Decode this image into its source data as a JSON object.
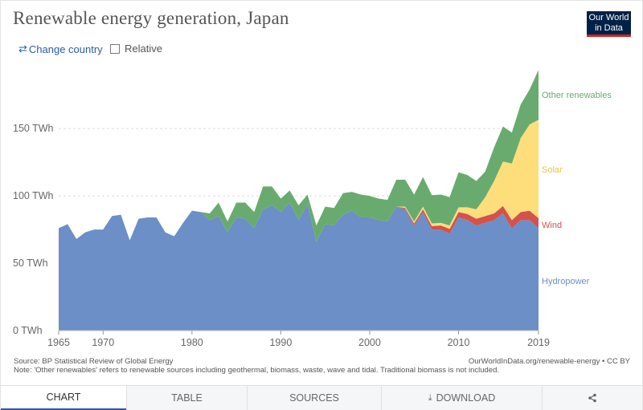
{
  "header": {
    "title": "Renewable energy generation, Japan",
    "logo_line1": "Our World",
    "logo_line2": "in Data"
  },
  "controls": {
    "change_country": "Change country",
    "relative": "Relative"
  },
  "colors": {
    "hydro": "#6b8fc6",
    "wind": "#d5514c",
    "solar": "#fdde7a",
    "other": "#69ab6f",
    "grid": "#dddddd",
    "axis_text": "#666666"
  },
  "chart_data": {
    "type": "area",
    "stacked": true,
    "title": "Renewable energy generation, Japan",
    "x": [
      1965,
      1966,
      1967,
      1968,
      1969,
      1970,
      1971,
      1972,
      1973,
      1974,
      1975,
      1976,
      1977,
      1978,
      1979,
      1980,
      1981,
      1982,
      1983,
      1984,
      1985,
      1986,
      1987,
      1988,
      1989,
      1990,
      1991,
      1992,
      1993,
      1994,
      1995,
      1996,
      1997,
      1998,
      1999,
      2000,
      2001,
      2002,
      2003,
      2004,
      2005,
      2006,
      2007,
      2008,
      2009,
      2010,
      2011,
      2012,
      2013,
      2014,
      2015,
      2016,
      2017,
      2018,
      2019
    ],
    "x_ticks": [
      1965,
      1970,
      1980,
      1990,
      2000,
      2010,
      2019
    ],
    "y_ticks": [
      0,
      50,
      100,
      150
    ],
    "y_tick_labels": [
      "0 TWh",
      "50 TWh",
      "100 TWh",
      "150 TWh"
    ],
    "ylim": [
      0,
      193
    ],
    "gridlines": true,
    "series": [
      {
        "name": "Hydropower",
        "color": "#6b8fc6",
        "values": [
          76,
          79,
          68,
          73,
          75,
          75,
          85,
          86,
          67,
          83,
          84,
          84,
          73,
          70,
          80,
          89,
          88,
          82,
          85,
          73,
          84,
          83,
          76,
          90,
          93,
          88,
          95,
          82,
          94,
          66,
          79,
          78,
          86,
          89,
          84,
          84,
          82,
          81,
          92,
          90,
          78,
          88,
          75,
          75,
          72,
          84,
          82,
          78,
          80,
          82,
          87,
          76,
          82,
          82,
          76
        ]
      },
      {
        "name": "Wind",
        "color": "#d5514c",
        "values": [
          0,
          0,
          0,
          0,
          0,
          0,
          0,
          0,
          0,
          0,
          0,
          0,
          0,
          0,
          0,
          0,
          0,
          0,
          0,
          0,
          0,
          0,
          0,
          0,
          0,
          0,
          0,
          0,
          0,
          0,
          0,
          0,
          0,
          0,
          0,
          0,
          0,
          0,
          0,
          1,
          1.5,
          2,
          2.5,
          3,
          3.5,
          4,
          4.5,
          5,
          5,
          5,
          5.5,
          6,
          6,
          7,
          7.5
        ]
      },
      {
        "name": "Solar",
        "color": "#fdde7a",
        "values": [
          0,
          0,
          0,
          0,
          0,
          0,
          0,
          0,
          0,
          0,
          0,
          0,
          0,
          0,
          0,
          0,
          0,
          0,
          0,
          0,
          0,
          0,
          0,
          0,
          0,
          0,
          0,
          0,
          0,
          0,
          0,
          0,
          0,
          0,
          0,
          0,
          0,
          0,
          0,
          1,
          1.5,
          2,
          2,
          2,
          2.5,
          3.5,
          5,
          7,
          14,
          24,
          33,
          42,
          55,
          64,
          73
        ]
      },
      {
        "name": "Other renewables",
        "color": "#69ab6f",
        "values": [
          0,
          0,
          0,
          0,
          0,
          0,
          0,
          0,
          0,
          0,
          0,
          0,
          0,
          0,
          0,
          0,
          0,
          5,
          10,
          8,
          11,
          12,
          12,
          17,
          14,
          10,
          9,
          11,
          7,
          12,
          13,
          13,
          16,
          14,
          17,
          16,
          16,
          16,
          20,
          20,
          20,
          22,
          21,
          21,
          21,
          26,
          24,
          21,
          19,
          25,
          26,
          23,
          25,
          26,
          37
        ]
      }
    ],
    "series_labels": [
      "Other renewables",
      "Solar",
      "Wind",
      "Hydropower"
    ]
  },
  "footer": {
    "source": "Source: BP Statistical Review of Global Energy",
    "note": "Note: 'Other renewables' refers to renewable sources including geothermal, biomass, waste, wave and tidal. Traditional biomass is not included.",
    "credit": "OurWorldInData.org/renewable-energy • CC BY"
  },
  "tabs": [
    {
      "label": "CHART",
      "active": true
    },
    {
      "label": "TABLE",
      "active": false
    },
    {
      "label": "SOURCES",
      "active": false
    },
    {
      "label": "DOWNLOAD",
      "active": false
    },
    {
      "label": "",
      "active": false
    }
  ],
  "icons": {
    "swap": "swap-arrows-icon",
    "download": "download-icon",
    "share": "share-icon"
  }
}
